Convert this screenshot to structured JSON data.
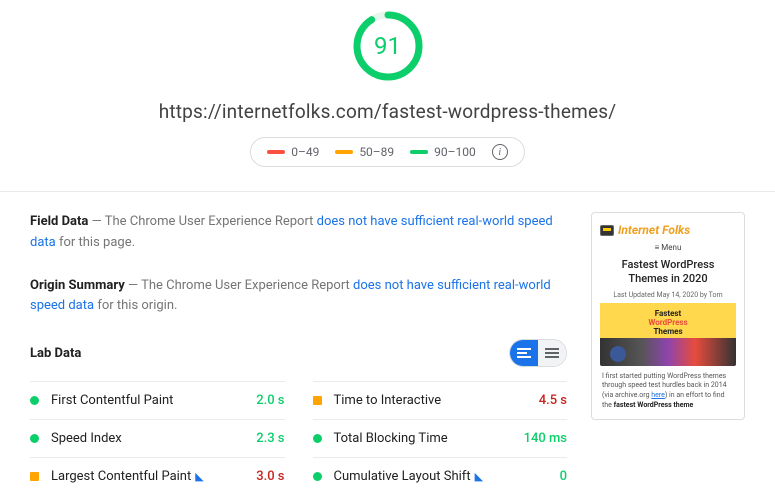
{
  "score": {
    "value": 91,
    "color": "#0cce6b",
    "ring_bg": "#e6f7ed",
    "ring_stroke_width": 7,
    "percent": 91
  },
  "url": "https://internetfolks.com/fastest-wordpress-themes/",
  "legend": {
    "poor": {
      "label": "0–49",
      "color": "#ff4e42"
    },
    "avg": {
      "label": "50–89",
      "color": "#ffa400"
    },
    "good": {
      "label": "90–100",
      "color": "#0cce6b"
    }
  },
  "field_data": {
    "title": "Field Data",
    "prefix": "—  The Chrome User Experience Report ",
    "link_text": "does not have sufficient real-world speed data",
    "suffix": " for this page."
  },
  "origin_summary": {
    "title": "Origin Summary",
    "prefix": "—  The Chrome User Experience Report ",
    "link_text": "does not have sufficient real-world speed data",
    "suffix": " for this origin."
  },
  "lab": {
    "title": "Lab Data",
    "colors": {
      "good": "#0cce6b",
      "avg": "#ffa400",
      "bad": "#ff4e42"
    },
    "left": [
      {
        "name": "First Contentful Paint",
        "value": "2.0 s",
        "status": "good",
        "flag": false
      },
      {
        "name": "Speed Index",
        "value": "2.3 s",
        "status": "good",
        "flag": false
      },
      {
        "name": "Largest Contentful Paint",
        "value": "3.0 s",
        "status": "avg",
        "flag": true
      }
    ],
    "right": [
      {
        "name": "Time to Interactive",
        "value": "4.5 s",
        "status": "avg",
        "flag": false
      },
      {
        "name": "Total Blocking Time",
        "value": "140 ms",
        "status": "good",
        "flag": false
      },
      {
        "name": "Cumulative Layout Shift",
        "value": "0",
        "status": "good",
        "flag": true
      }
    ]
  },
  "preview": {
    "brand": "Internet Folks",
    "menu": "≡  Menu",
    "title": "Fastest WordPress Themes in 2020",
    "meta": "Last Updated May 14, 2020 by Tom",
    "banner1": "Fastest",
    "banner2": "WordPress",
    "banner3": "Themes",
    "para_a": "I first started putting WordPress themes through speed test hurdles back in 2014 (via archive.org ",
    "para_link": "here",
    "para_b": ") in an effort to find the ",
    "para_bold": "fastest WordPress theme"
  }
}
